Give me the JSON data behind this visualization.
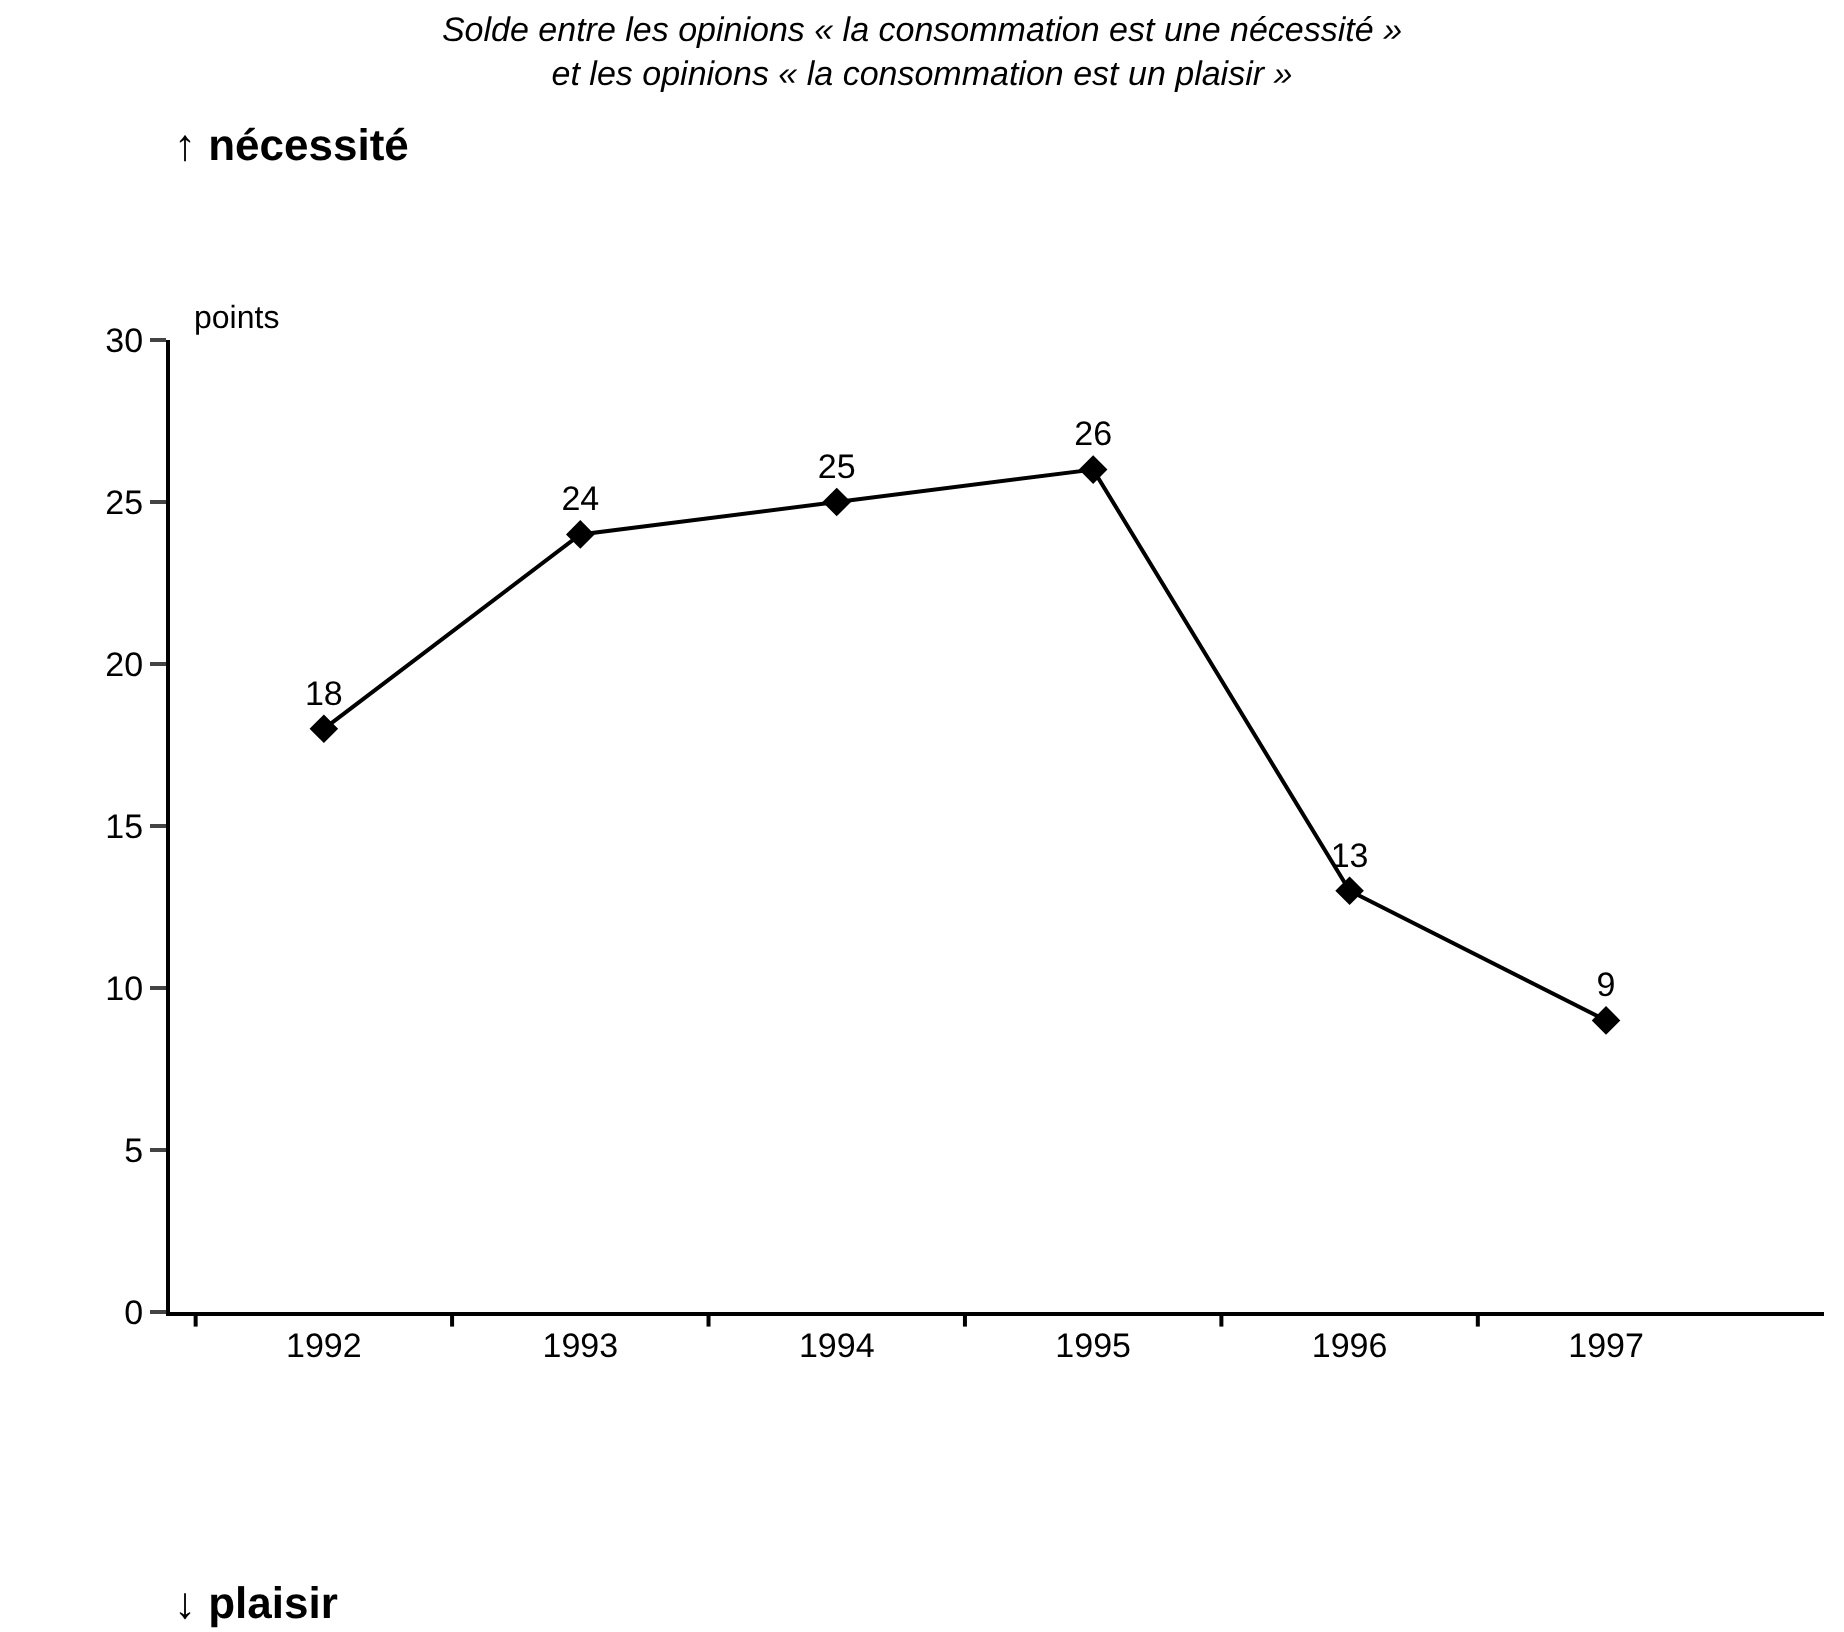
{
  "chart_data": {
    "type": "line",
    "title": "Solde entre les opinions « la consommation est une nécessité »\net les opinions « la consommation est un plaisir »",
    "ylabel": "points",
    "annotations": [
      "↑ nécessité",
      "↓ plaisir"
    ],
    "categories": [
      "1992",
      "1993",
      "1994",
      "1995",
      "1996",
      "1997"
    ],
    "series": [
      {
        "color": "#000000",
        "values": [
          18,
          24,
          25,
          26,
          13,
          9
        ]
      }
    ],
    "ylim": [
      0,
      30
    ],
    "yticks": [
      0,
      5,
      10,
      15,
      20,
      25,
      30
    ],
    "data_labels": true,
    "marker": "diamond",
    "line_style": "solid"
  }
}
